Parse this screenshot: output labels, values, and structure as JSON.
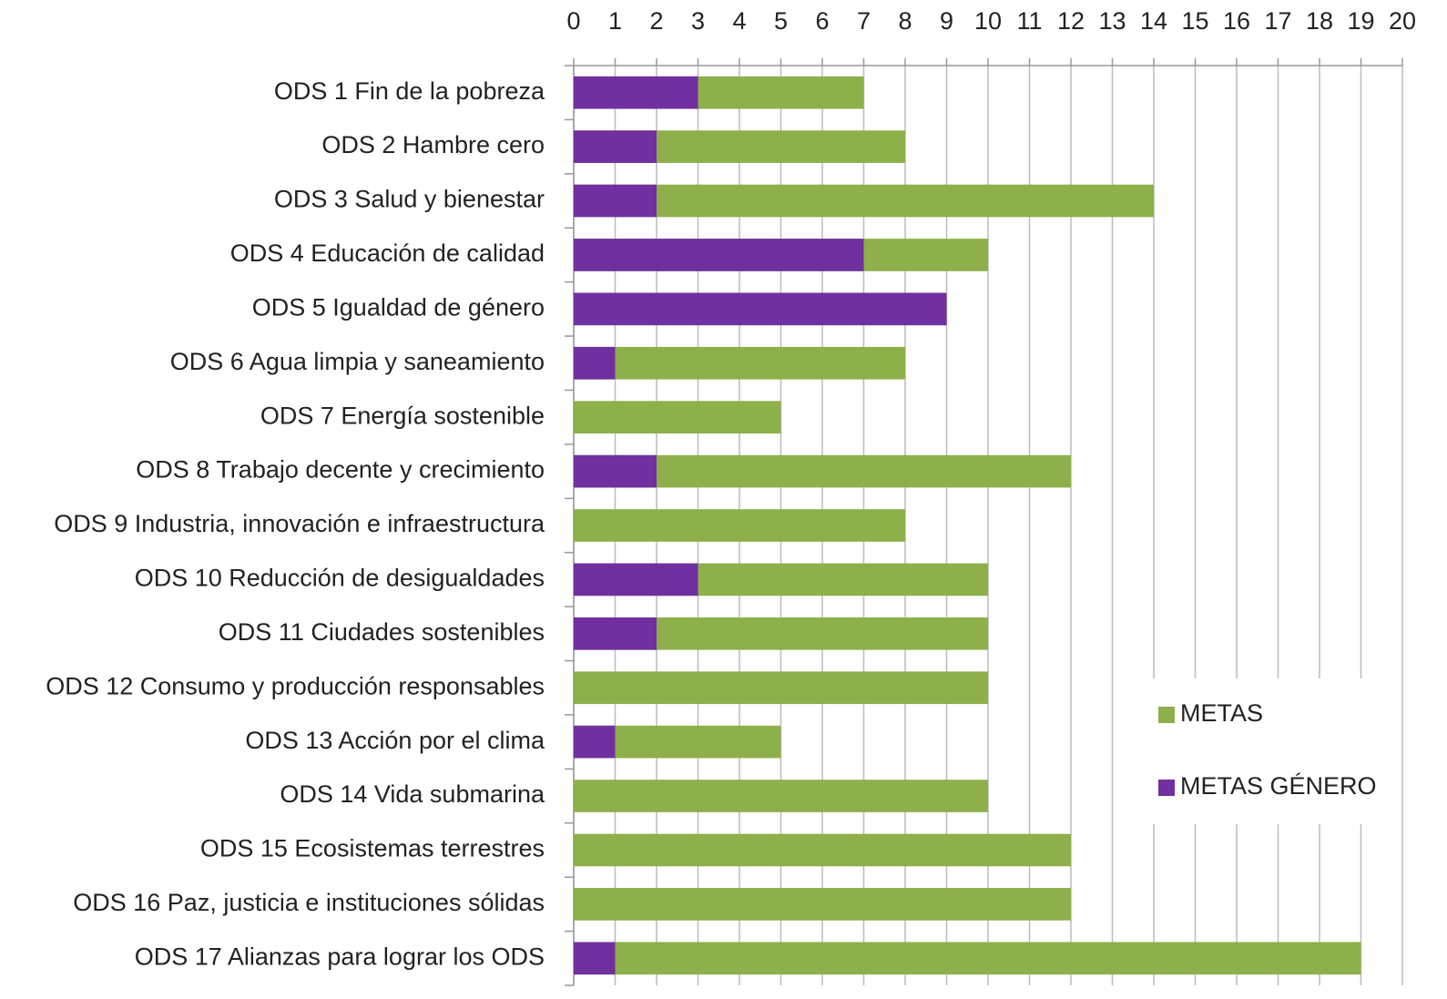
{
  "chart_data": {
    "type": "hbar_overlap",
    "categories": [
      "ODS 1 Fin de la pobreza",
      "ODS 2 Hambre cero",
      "ODS 3 Salud y bienestar",
      "ODS 4 Educación de calidad",
      "ODS 5 Igualdad de género",
      "ODS 6 Agua limpia y saneamiento",
      "ODS 7 Energía sostenible",
      "ODS 8 Trabajo decente y crecimiento",
      "ODS 9 Industria, innovación e infraestructura",
      "ODS 10 Reducción de desigualdades",
      "ODS 11 Ciudades sostenibles",
      "ODS 12 Consumo y producción responsables",
      "ODS 13 Acción por el clima",
      "ODS 14 Vida submarina",
      "ODS 15 Ecosistemas terrestres",
      "ODS 16 Paz, justicia e instituciones sólidas",
      "ODS 17 Alianzas para lograr los ODS"
    ],
    "series": [
      {
        "name": "METAS",
        "color": "#8db04a",
        "values": [
          7,
          8,
          14,
          10,
          9,
          8,
          5,
          12,
          8,
          10,
          10,
          10,
          5,
          10,
          12,
          12,
          19
        ]
      },
      {
        "name": "METAS GÉNERO",
        "color": "#7030a0",
        "values": [
          3,
          2,
          2,
          7,
          9,
          1,
          0,
          2,
          0,
          3,
          2,
          0,
          1,
          0,
          0,
          0,
          1
        ]
      }
    ],
    "xlim": [
      0,
      20
    ],
    "xticks": [
      0,
      1,
      2,
      3,
      4,
      5,
      6,
      7,
      8,
      9,
      10,
      11,
      12,
      13,
      14,
      15,
      16,
      17,
      18,
      19,
      20
    ],
    "grid": true,
    "legend": "right"
  }
}
